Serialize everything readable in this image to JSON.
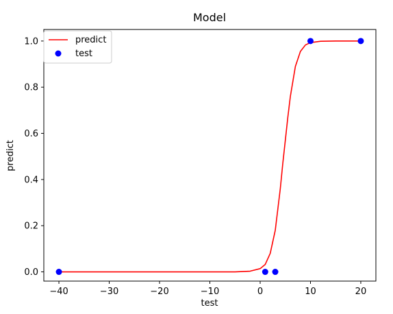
{
  "chart_data": {
    "type": "line",
    "title": "Model",
    "xlabel": "test",
    "ylabel": "predict",
    "xlim": [
      -43,
      23
    ],
    "ylim": [
      -0.04,
      1.05
    ],
    "grid": false,
    "legend_position": "top-left",
    "x_ticks": [
      -40,
      -30,
      -20,
      -10,
      0,
      10,
      20
    ],
    "x_tick_labels": [
      "−40",
      "−30",
      "−20",
      "−10",
      "0",
      "10",
      "20"
    ],
    "y_ticks": [
      0.0,
      0.2,
      0.4,
      0.6,
      0.8,
      1.0
    ],
    "y_tick_labels": [
      "0.0",
      "0.2",
      "0.4",
      "0.6",
      "0.8",
      "1.0"
    ],
    "series": [
      {
        "name": "predict",
        "kind": "line",
        "color": "#ff0000",
        "x": [
          -40,
          -30,
          -20,
          -10,
          -5,
          -2,
          0,
          1,
          2,
          3,
          4,
          4.5,
          5,
          5.5,
          6,
          7,
          8,
          9,
          10,
          12,
          15,
          20
        ],
        "y": [
          0.0,
          0.0,
          0.0,
          0.0,
          0.0,
          0.003,
          0.014,
          0.032,
          0.08,
          0.18,
          0.36,
          0.47,
          0.57,
          0.67,
          0.76,
          0.89,
          0.955,
          0.983,
          0.993,
          0.999,
          1.0,
          1.0
        ]
      },
      {
        "name": "test",
        "kind": "scatter",
        "color": "#0000ff",
        "x": [
          -40,
          1,
          3,
          10,
          20
        ],
        "y": [
          0,
          0,
          0,
          1,
          1
        ]
      }
    ]
  }
}
